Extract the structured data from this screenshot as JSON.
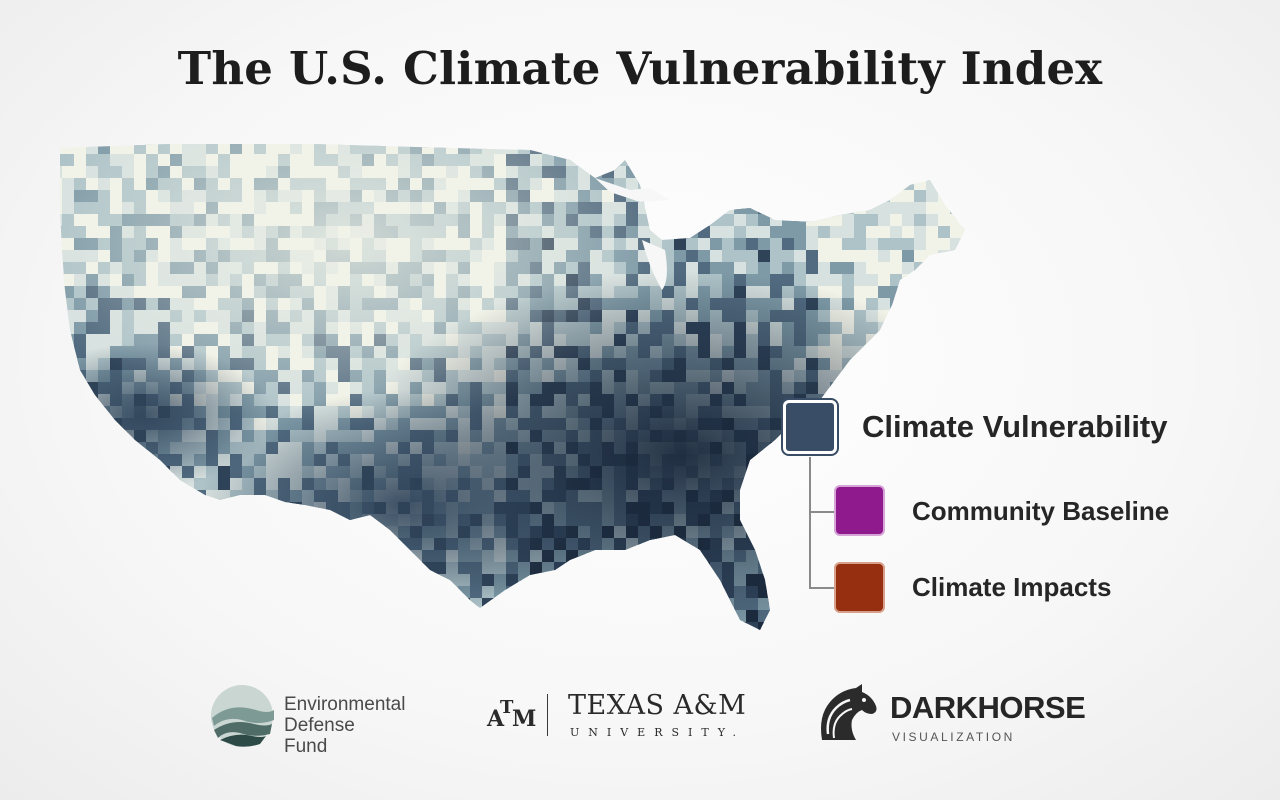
{
  "title": "The U.S. Climate Vulnerability Index",
  "map": {
    "scale_colors": [
      "#f2f3e8",
      "#d7e1df",
      "#aec3c8",
      "#7e9aa7",
      "#526b80",
      "#2e4258",
      "#1c2a3d"
    ]
  },
  "legend": {
    "main": {
      "label": "Climate Vulnerability",
      "color": "#3a4d66"
    },
    "children": [
      {
        "label": "Community Baseline",
        "color": "#8e1a8e"
      },
      {
        "label": "Climate Impacts",
        "color": "#962f10"
      }
    ]
  },
  "logos": {
    "edf": {
      "lines": [
        "Environmental",
        "Defense",
        "Fund"
      ]
    },
    "tamu": {
      "mark": "ATM",
      "name": "TEXAS A&M",
      "sub": "UNIVERSITY."
    },
    "darkhorse": {
      "name": "DARKHORSE",
      "sub": "VISUALIZATION"
    }
  }
}
